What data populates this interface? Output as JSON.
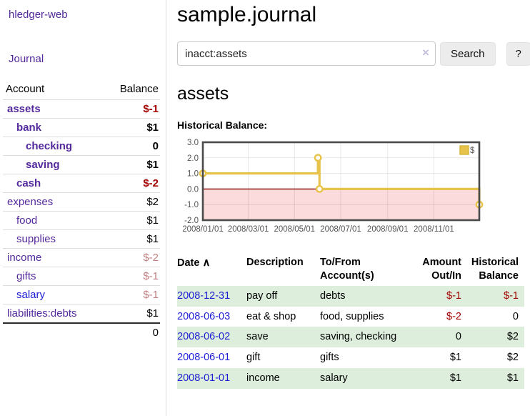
{
  "app": {
    "brand": "hledger-web",
    "nav_journal": "Journal"
  },
  "sidebar": {
    "accounts_header": {
      "account": "Account",
      "balance": "Balance"
    },
    "accounts": [
      {
        "name": "assets",
        "balance": "$-1",
        "depth": 1,
        "bold": true,
        "neg": "strong"
      },
      {
        "name": "bank",
        "balance": "$1",
        "depth": 2,
        "bold": true
      },
      {
        "name": "checking",
        "balance": "0",
        "depth": 3,
        "bold": true
      },
      {
        "name": "saving",
        "balance": "$1",
        "depth": 3,
        "bold": true
      },
      {
        "name": "cash",
        "balance": "$-2",
        "depth": 2,
        "bold": true,
        "neg": "strong"
      },
      {
        "name": "expenses",
        "balance": "$2",
        "depth": 1
      },
      {
        "name": "food",
        "balance": "$1",
        "depth": 2
      },
      {
        "name": "supplies",
        "balance": "$1",
        "depth": 2
      },
      {
        "name": "income",
        "balance": "$-2",
        "depth": 1,
        "neg": "soft"
      },
      {
        "name": "gifts",
        "balance": "$-1",
        "depth": 2,
        "neg": "soft"
      },
      {
        "name": "salary",
        "balance": "$-1",
        "depth": 2,
        "neg": "soft",
        "variant": "blue"
      },
      {
        "name": "liabilities:debts",
        "balance": "$1",
        "depth": 1
      }
    ],
    "total": "0"
  },
  "header": {
    "title": "sample.journal"
  },
  "search": {
    "value": "inacct:assets",
    "clear_icon": "×",
    "button": "Search",
    "help_button": "?"
  },
  "account_page": {
    "heading": "assets",
    "chart_label": "Historical Balance:"
  },
  "chart_data": {
    "type": "line",
    "title": "Historical Balance:",
    "step": true,
    "series": [
      {
        "name": "$",
        "color": "#e8c34c",
        "points": [
          [
            "2008-01-01",
            1
          ],
          [
            "2008-06-01",
            2
          ],
          [
            "2008-06-03",
            0
          ],
          [
            "2008-12-31",
            -1
          ]
        ]
      }
    ],
    "xlim": [
      "2008-01-01",
      "2008-12-31"
    ],
    "ylim": [
      -2,
      3
    ],
    "x_ticks": [
      "2008/01/01",
      "2008/03/01",
      "2008/05/01",
      "2008/07/01",
      "2008/09/01",
      "2008/11/01"
    ],
    "y_ticks": [
      3.0,
      2.0,
      1.0,
      0.0,
      -1.0,
      -2.0
    ],
    "grid": true,
    "negative_fill": "#fbdbdb",
    "zero_line_color": "#8b0000",
    "legend": {
      "label": "$",
      "position": "top-right"
    }
  },
  "register": {
    "headers": {
      "date": "Date",
      "description": "Description",
      "account": "To/From Account(s)",
      "amount": "Amount Out/In",
      "balance": "Historical Balance"
    },
    "sort_asc_icon": "∧",
    "rows": [
      {
        "date": "2008-12-31",
        "description": "pay off",
        "accounts": "debts",
        "amount": "$-1",
        "balance": "$-1"
      },
      {
        "date": "2008-06-03",
        "description": "eat & shop",
        "accounts": "food, supplies",
        "amount": "$-2",
        "balance": "0"
      },
      {
        "date": "2008-06-02",
        "description": "save",
        "accounts": "saving, checking",
        "amount": "0",
        "balance": "$2"
      },
      {
        "date": "2008-06-01",
        "description": "gift",
        "accounts": "gifts",
        "amount": "$1",
        "balance": "$2"
      },
      {
        "date": "2008-01-01",
        "description": "income",
        "accounts": "salary",
        "amount": "$1",
        "balance": "$1"
      }
    ]
  }
}
